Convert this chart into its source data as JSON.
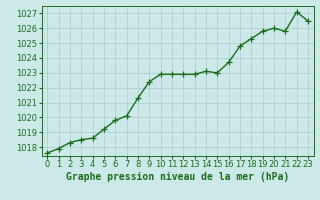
{
  "x": [
    0,
    1,
    2,
    3,
    4,
    5,
    6,
    7,
    8,
    9,
    10,
    11,
    12,
    13,
    14,
    15,
    16,
    17,
    18,
    19,
    20,
    21,
    22,
    23
  ],
  "y": [
    1017.6,
    1017.9,
    1018.3,
    1018.5,
    1018.6,
    1019.2,
    1019.8,
    1020.1,
    1021.3,
    1022.4,
    1022.9,
    1022.9,
    1022.9,
    1022.9,
    1023.1,
    1023.0,
    1023.7,
    1024.8,
    1025.3,
    1025.8,
    1026.0,
    1025.8,
    1027.1,
    1026.5
  ],
  "line_color": "#1a6e1a",
  "marker": "+",
  "marker_color": "#1a6e1a",
  "bg_color": "#cce8e8",
  "grid_color": "#aacaca",
  "text_color": "#1a6e1a",
  "xlabel": "Graphe pression niveau de la mer (hPa)",
  "ylim_min": 1017.4,
  "ylim_max": 1027.5,
  "yticks": [
    1018,
    1019,
    1020,
    1021,
    1022,
    1023,
    1024,
    1025,
    1026,
    1027
  ],
  "xtick_labels": [
    "0",
    "1",
    "2",
    "3",
    "4",
    "5",
    "6",
    "7",
    "8",
    "9",
    "10",
    "11",
    "12",
    "13",
    "14",
    "15",
    "16",
    "17",
    "18",
    "19",
    "20",
    "21",
    "22",
    "23"
  ],
  "xlabel_fontsize": 7,
  "tick_fontsize": 6,
  "linewidth": 1.0,
  "markersize": 4
}
